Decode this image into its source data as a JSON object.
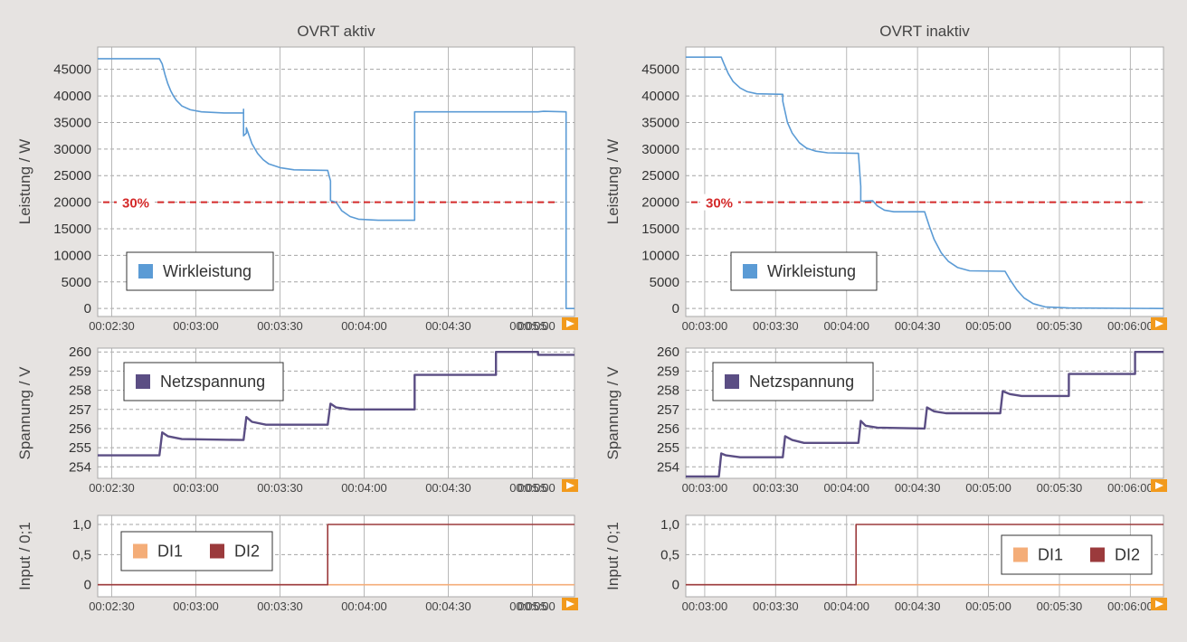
{
  "colors": {
    "wirkleistung": "#5b9bd5",
    "netzspannung": "#5b4e84",
    "di1": "#f4ad78",
    "di2": "#9b3a3c",
    "threshold": "#d42a2a",
    "nav_arrow": "#f29a1c"
  },
  "chart_data": [
    {
      "id": "left-power",
      "type": "line",
      "title": "OVRT aktiv",
      "xlabel": "",
      "ylabel": "Leistung / W",
      "xlim": [
        "00:02:25",
        "00:05:15"
      ],
      "x_ticks": [
        "00:02:30",
        "00:03:00",
        "00:03:30",
        "00:04:00",
        "00:04:30",
        "00:05:00",
        "00:05"
      ],
      "ylim": [
        -1500,
        49200
      ],
      "y_ticks": [
        0,
        5000,
        10000,
        15000,
        20000,
        25000,
        30000,
        35000,
        40000,
        45000
      ],
      "grid": true,
      "legend_position": "bottom-left",
      "annotations": [
        {
          "type": "hline",
          "label": "30%",
          "y": 20000
        }
      ],
      "series": [
        {
          "name": "Wirkleistung",
          "color_key": "wirkleistung",
          "points": [
            [
              "00:02:25",
              47000
            ],
            [
              "00:02:47",
              47000
            ],
            [
              "00:02:48",
              46000
            ],
            [
              "00:02:49",
              44000
            ],
            [
              "00:02:50",
              42300
            ],
            [
              "00:02:51",
              41000
            ],
            [
              "00:02:52",
              40000
            ],
            [
              "00:02:53",
              39200
            ],
            [
              "00:02:55",
              38100
            ],
            [
              "00:02:58",
              37400
            ],
            [
              "00:03:02",
              37000
            ],
            [
              "00:03:10",
              36800
            ],
            [
              "00:03:17",
              36800
            ],
            [
              "00:03:17",
              37500
            ],
            [
              "00:03:17",
              32500
            ],
            [
              "00:03:18",
              33000
            ],
            [
              "00:03:18",
              34000
            ],
            [
              "00:03:20",
              31000
            ],
            [
              "00:03:22",
              29200
            ],
            [
              "00:03:24",
              28000
            ],
            [
              "00:03:26",
              27200
            ],
            [
              "00:03:30",
              26500
            ],
            [
              "00:03:35",
              26100
            ],
            [
              "00:03:47",
              26000
            ],
            [
              "00:03:48",
              24000
            ],
            [
              "00:03:48",
              20300
            ],
            [
              "00:03:50",
              20000
            ],
            [
              "00:03:52",
              18400
            ],
            [
              "00:03:55",
              17300
            ],
            [
              "00:03:58",
              16800
            ],
            [
              "00:04:05",
              16600
            ],
            [
              "00:04:18",
              16600
            ],
            [
              "00:04:18",
              37000
            ],
            [
              "00:05:02",
              37000
            ],
            [
              "00:05:04",
              37100
            ],
            [
              "00:05:12",
              37000
            ],
            [
              "00:05:12",
              0
            ],
            [
              "00:05:15",
              0
            ]
          ]
        }
      ]
    },
    {
      "id": "right-power",
      "type": "line",
      "title": "OVRT inaktiv",
      "xlabel": "",
      "ylabel": "Leistung / W",
      "xlim": [
        "00:02:52",
        "00:06:14"
      ],
      "x_ticks": [
        "00:03:00",
        "00:03:30",
        "00:04:00",
        "00:04:30",
        "00:05:00",
        "00:05:30",
        "00:06:00"
      ],
      "ylim": [
        -1500,
        49200
      ],
      "y_ticks": [
        0,
        5000,
        10000,
        15000,
        20000,
        25000,
        30000,
        35000,
        40000,
        45000
      ],
      "grid": true,
      "legend_position": "bottom-left",
      "annotations": [
        {
          "type": "hline",
          "label": "30%",
          "y": 20000
        }
      ],
      "series": [
        {
          "name": "Wirkleistung",
          "color_key": "wirkleistung",
          "points": [
            [
              "00:02:52",
              47300
            ],
            [
              "00:03:07",
              47300
            ],
            [
              "00:03:08",
              46200
            ],
            [
              "00:03:10",
              44200
            ],
            [
              "00:03:12",
              42700
            ],
            [
              "00:03:15",
              41500
            ],
            [
              "00:03:18",
              40800
            ],
            [
              "00:03:22",
              40400
            ],
            [
              "00:03:33",
              40300
            ],
            [
              "00:03:33",
              39000
            ],
            [
              "00:03:35",
              35000
            ],
            [
              "00:03:37",
              33000
            ],
            [
              "00:03:40",
              31200
            ],
            [
              "00:03:43",
              30200
            ],
            [
              "00:03:47",
              29600
            ],
            [
              "00:03:52",
              29300
            ],
            [
              "00:04:05",
              29200
            ],
            [
              "00:04:06",
              23000
            ],
            [
              "00:04:06",
              20200
            ],
            [
              "00:04:11",
              20300
            ],
            [
              "00:04:13",
              19300
            ],
            [
              "00:04:16",
              18500
            ],
            [
              "00:04:20",
              18200
            ],
            [
              "00:04:33",
              18200
            ],
            [
              "00:04:35",
              15500
            ],
            [
              "00:04:37",
              13000
            ],
            [
              "00:04:40",
              10500
            ],
            [
              "00:04:43",
              8900
            ],
            [
              "00:04:47",
              7700
            ],
            [
              "00:04:52",
              7100
            ],
            [
              "00:05:07",
              7000
            ],
            [
              "00:05:09",
              5500
            ],
            [
              "00:05:12",
              3500
            ],
            [
              "00:05:15",
              2000
            ],
            [
              "00:05:19",
              900
            ],
            [
              "00:05:24",
              300
            ],
            [
              "00:05:34",
              100
            ],
            [
              "00:06:14",
              0
            ]
          ]
        }
      ]
    },
    {
      "id": "left-voltage",
      "type": "line",
      "title": "",
      "xlabel": "",
      "ylabel": "Spannung / V",
      "xlim": [
        "00:02:25",
        "00:05:15"
      ],
      "x_ticks": [
        "00:02:30",
        "00:03:00",
        "00:03:30",
        "00:04:00",
        "00:04:30",
        "00:05:00",
        "00:05"
      ],
      "ylim": [
        253.4,
        260.2
      ],
      "y_ticks": [
        254,
        255,
        256,
        257,
        258,
        259,
        260
      ],
      "grid": true,
      "legend_position": "top-left",
      "series": [
        {
          "name": "Netzspannung",
          "color_key": "netzspannung",
          "points": [
            [
              "00:02:25",
              254.6
            ],
            [
              "00:02:47",
              254.6
            ],
            [
              "00:02:48",
              255.8
            ],
            [
              "00:02:50",
              255.6
            ],
            [
              "00:02:55",
              255.45
            ],
            [
              "00:03:17",
              255.4
            ],
            [
              "00:03:18",
              256.6
            ],
            [
              "00:03:20",
              256.35
            ],
            [
              "00:03:25",
              256.2
            ],
            [
              "00:03:47",
              256.2
            ],
            [
              "00:03:48",
              257.3
            ],
            [
              "00:03:50",
              257.1
            ],
            [
              "00:03:55",
              257.0
            ],
            [
              "00:04:18",
              257.0
            ],
            [
              "00:04:18",
              258.8
            ],
            [
              "00:04:47",
              258.8
            ],
            [
              "00:04:47",
              260.0
            ],
            [
              "00:05:02",
              260.0
            ],
            [
              "00:05:02",
              259.85
            ],
            [
              "00:05:15",
              259.85
            ]
          ]
        }
      ]
    },
    {
      "id": "right-voltage",
      "type": "line",
      "title": "",
      "xlabel": "",
      "ylabel": "Spannung / V",
      "xlim": [
        "00:02:52",
        "00:06:14"
      ],
      "x_ticks": [
        "00:03:00",
        "00:03:30",
        "00:04:00",
        "00:04:30",
        "00:05:00",
        "00:05:30",
        "00:06:00"
      ],
      "ylim": [
        253.4,
        260.2
      ],
      "y_ticks": [
        254,
        255,
        256,
        257,
        258,
        259,
        260
      ],
      "grid": true,
      "legend_position": "top-left",
      "series": [
        {
          "name": "Netzspannung",
          "color_key": "netzspannung",
          "points": [
            [
              "00:02:52",
              253.5
            ],
            [
              "00:03:06",
              253.5
            ],
            [
              "00:03:07",
              254.7
            ],
            [
              "00:03:09",
              254.6
            ],
            [
              "00:03:15",
              254.5
            ],
            [
              "00:03:33",
              254.5
            ],
            [
              "00:03:34",
              255.6
            ],
            [
              "00:03:37",
              255.4
            ],
            [
              "00:03:42",
              255.25
            ],
            [
              "00:04:05",
              255.25
            ],
            [
              "00:04:06",
              256.4
            ],
            [
              "00:04:08",
              256.15
            ],
            [
              "00:04:13",
              256.05
            ],
            [
              "00:04:33",
              256.0
            ],
            [
              "00:04:34",
              257.1
            ],
            [
              "00:04:37",
              256.9
            ],
            [
              "00:04:42",
              256.8
            ],
            [
              "00:05:05",
              256.8
            ],
            [
              "00:05:06",
              257.95
            ],
            [
              "00:05:09",
              257.8
            ],
            [
              "00:05:14",
              257.7
            ],
            [
              "00:05:34",
              257.7
            ],
            [
              "00:05:34",
              258.85
            ],
            [
              "00:06:02",
              258.85
            ],
            [
              "00:06:02",
              260.0
            ],
            [
              "00:06:14",
              260.0
            ]
          ]
        }
      ]
    },
    {
      "id": "left-input",
      "type": "line",
      "title": "",
      "xlabel": "",
      "ylabel": "Input / 0;1",
      "xlim": [
        "00:02:25",
        "00:05:15"
      ],
      "x_ticks": [
        "00:02:30",
        "00:03:00",
        "00:03:30",
        "00:04:00",
        "00:04:30",
        "00:05:00",
        "00:05"
      ],
      "y_tick_labels": [
        "0",
        "0,5",
        "1,0"
      ],
      "y_tick_values": [
        0,
        0.5,
        1
      ],
      "ylim": [
        -0.2,
        1.15
      ],
      "grid": true,
      "legend_position": "top-left",
      "series": [
        {
          "name": "DI1",
          "color_key": "di1",
          "points": [
            [
              "00:02:25",
              0
            ],
            [
              "00:05:15",
              0
            ]
          ]
        },
        {
          "name": "DI2",
          "color_key": "di2",
          "points": [
            [
              "00:02:25",
              0
            ],
            [
              "00:03:47",
              0
            ],
            [
              "00:03:47",
              1
            ],
            [
              "00:05:15",
              1
            ]
          ]
        }
      ]
    },
    {
      "id": "right-input",
      "type": "line",
      "title": "",
      "xlabel": "",
      "ylabel": "Input / 0;1",
      "xlim": [
        "00:02:52",
        "00:06:14"
      ],
      "x_ticks": [
        "00:03:00",
        "00:03:30",
        "00:04:00",
        "00:04:30",
        "00:05:00",
        "00:05:30",
        "00:06:00"
      ],
      "y_tick_labels": [
        "0",
        "0,5",
        "1,0"
      ],
      "y_tick_values": [
        0,
        0.5,
        1
      ],
      "ylim": [
        -0.2,
        1.15
      ],
      "grid": true,
      "legend_position": "bottom-right",
      "series": [
        {
          "name": "DI1",
          "color_key": "di1",
          "points": [
            [
              "00:02:52",
              0
            ],
            [
              "00:06:14",
              0
            ]
          ]
        },
        {
          "name": "DI2",
          "color_key": "di2",
          "points": [
            [
              "00:02:52",
              0
            ],
            [
              "00:04:04",
              0
            ],
            [
              "00:04:04",
              1
            ],
            [
              "00:06:14",
              1
            ]
          ]
        }
      ]
    }
  ]
}
